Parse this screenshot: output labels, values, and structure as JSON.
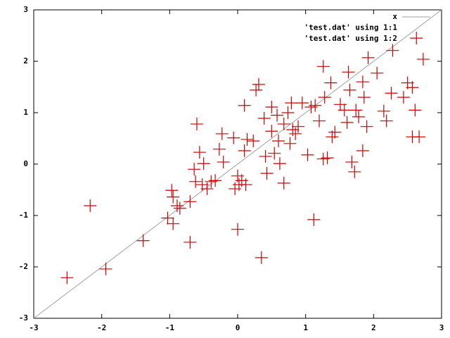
{
  "chart_data": {
    "type": "scatter",
    "xlim": [
      -3,
      3
    ],
    "ylim": [
      -3,
      3
    ],
    "xticks": [
      -3,
      -2,
      -1,
      0,
      1,
      2,
      3
    ],
    "yticks": [
      -3,
      -2,
      -1,
      0,
      1,
      2,
      3
    ],
    "legend": "top-right",
    "series": [
      {
        "name": "x",
        "kind": "function",
        "color": "#a0a0a0"
      },
      {
        "name": "'test.dat' using 1:1"
      },
      {
        "name": "'test.dat' using 1:2",
        "color": "#d00000",
        "x": [
          -2.51,
          -2.17,
          -1.94,
          -1.39,
          -1.03,
          -0.97,
          -0.95,
          -0.95,
          -0.89,
          -0.85,
          -0.7,
          -0.7,
          -0.6,
          -0.64,
          -0.62,
          -0.56,
          -0.52,
          -0.5,
          -0.45,
          -0.39,
          -0.33,
          -0.27,
          -0.23,
          -0.21,
          -0.06,
          -0.04,
          0,
          0,
          0.02,
          0.06,
          0.1,
          0.1,
          0.12,
          0.14,
          0.23,
          0.27,
          0.31,
          0.35,
          0.39,
          0.41,
          0.43,
          0.5,
          0.5,
          0.54,
          0.58,
          0.6,
          0.62,
          0.68,
          0.68,
          0.74,
          0.77,
          0.79,
          0.81,
          0.85,
          0.89,
          0.95,
          1.03,
          1.08,
          1.12,
          1.14,
          1.2,
          1.26,
          1.26,
          1.28,
          1.32,
          1.37,
          1.39,
          1.43,
          1.51,
          1.57,
          1.61,
          1.63,
          1.65,
          1.68,
          1.72,
          1.74,
          1.78,
          1.84,
          1.84,
          1.86,
          1.9,
          1.92,
          2.05,
          2.15,
          2.19,
          2.26,
          2.28,
          2.44,
          2.5,
          2.57,
          2.57,
          2.61,
          2.67,
          2.63,
          2.73
        ],
        "values": [
          -2.21,
          -0.81,
          -2.04,
          -1.49,
          -1.05,
          -0.51,
          -0.64,
          -1.16,
          -0.81,
          -0.86,
          -1.52,
          -0.73,
          0.78,
          -0.1,
          -0.34,
          0.23,
          -0.4,
          0.01,
          -0.48,
          -0.34,
          -0.32,
          0.29,
          0.59,
          0.04,
          0.51,
          -0.48,
          -1.27,
          -0.23,
          -0.4,
          -0.32,
          1.14,
          0.26,
          -0.4,
          0.48,
          0.45,
          1.44,
          1.55,
          -1.82,
          0.89,
          0.15,
          -0.18,
          0.64,
          1.11,
          0.21,
          0.95,
          0.45,
          0.01,
          -0.37,
          0.78,
          1.0,
          0.4,
          1.19,
          0.67,
          0.59,
          0.73,
          1.19,
          0.18,
          1.11,
          -1.08,
          1.14,
          0.84,
          1.9,
          0.1,
          1.3,
          0.12,
          1.58,
          0.53,
          0.62,
          1.16,
          1.05,
          0.81,
          1.79,
          1.44,
          0.04,
          -0.15,
          1.05,
          0.92,
          0.26,
          1.6,
          1.3,
          0.73,
          2.07,
          1.77,
          1.03,
          0.84,
          1.38,
          2.21,
          1.3,
          1.58,
          1.49,
          0.53,
          1.05,
          0.53,
          2.45,
          2.04
        ]
      }
    ]
  }
}
